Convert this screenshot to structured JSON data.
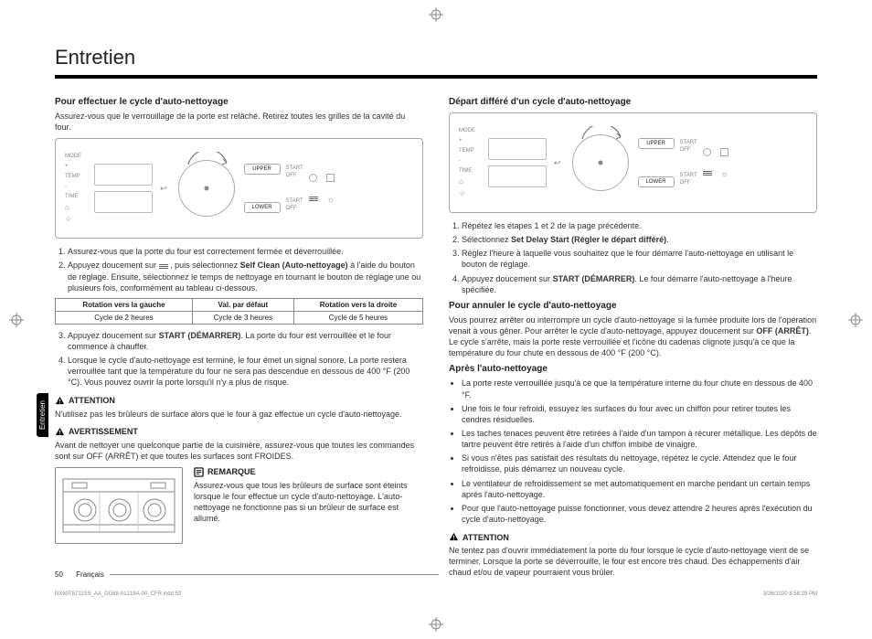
{
  "title": "Entretien",
  "left": {
    "h1": "Pour effectuer le cycle d'auto-nettoyage",
    "p1": "Assurez-vous que le verrouillage de la porte est relâché. Retirez toutes les grilles de la cavité du four.",
    "panel": {
      "ctrls": [
        "MODE",
        "+",
        "TEMP",
        "-",
        "TIME",
        "",
        ""
      ],
      "btn_upper": "UPPER",
      "btn_lower": "LOWER",
      "start": "START",
      "off": "OFF"
    },
    "steps": [
      "Assurez-vous que la porte du four est correctement fermée et déverrouillée.",
      "Appuyez doucement sur ___ , puis sélectionnez __SELFCLEAN__ à l'aide du bouton de réglage. Ensuite, sélectionnez le temps de nettoyage en tournant le bouton de réglage une ou plusieurs fois, conformément au tableau ci-dessous."
    ],
    "selfclean_label": "Self Clean (Auto-nettoyage)",
    "table": {
      "headers": [
        "Rotation vers la gauche",
        "Val. par défaut",
        "Rotation vers la droite"
      ],
      "row": [
        "Cycle de 2 heures",
        "Cycle de 3 heures",
        "Cycle de 5 heures"
      ]
    },
    "steps2": [
      "Appuyez doucement sur __START__. La porte du four est verrouillée et le four commence à chauffer.",
      "Lorsque le cycle d'auto-nettoyage est terminé, le four émet un signal sonore. La porte restera verrouillée tant que la température du four ne sera pas descendue en dessous de 400 °F (200 °C). Vous pouvez ouvrir la porte lorsqu'il n'y a plus de risque."
    ],
    "start_label": "START (DÉMARRER)",
    "attention": "ATTENTION",
    "att_p": "N'utilisez pas les brûleurs de surface alors que le four à gaz effectue un cycle d'auto-nettoyage.",
    "avert": "AVERTISSEMENT",
    "avert_p": "Avant de nettoyer une quelconque partie de la cuisinière, assurez-vous que toutes les commandes sont sur OFF (ARRÊT) et que toutes les surfaces sont FROIDES.",
    "remarque": "REMARQUE",
    "rem_p": "Assurez-vous que tous les brûleurs de surface sont éteints lorsque le four effectue un cycle d'auto-nettoyage. L'auto-nettoyage ne fonctionne pas si un brûleur de surface est allumé."
  },
  "right": {
    "h1": "Départ différé d'un cycle d'auto-nettoyage",
    "steps": [
      "Répétez les étapes 1 et 2 de la page précédente.",
      "Sélectionnez __DELAY__.",
      "Réglez l'heure à laquelle vous souhaitez que le four démarre l'auto-nettoyage en utilisant le bouton de réglage.",
      "Appuyez doucement sur __START2__. Le four démarre l'auto-nettoyage à l'heure spécifiée."
    ],
    "delay_label": "Set Delay Start (Régler le départ différé)",
    "start_label": "START (DÉMARRER)",
    "h2": "Pour annuler le cycle d'auto-nettoyage",
    "p2": "Vous pourrez arrêter ou interrompre un cycle d'auto-nettoyage si la fumée produite lors de l'opération venait à vous gêner. Pour arrêter le cycle d'auto-nettoyage, appuyez doucement sur __OFF__. Le cycle s'arrête, mais la porte reste verrouillée et l'icône du cadenas clignote jusqu'à ce que la température du four chute en dessous de 400 °F (200 °C).",
    "off_label": "OFF (ARRÊT)",
    "h3": "Après l'auto-nettoyage",
    "bullets": [
      "La porte reste verrouillée jusqu'à ce que la température interne du four chute en dessous de 400 °F.",
      "Une fois le four refroidi, essuyez les surfaces du four avec un chiffon pour retirer toutes les cendres résiduelles.",
      "Les taches tenaces peuvent être retirées à l'aide d'un tampon à récurer métallique. Les dépôts de tartre peuvent être retirés à l'aide d'un chiffon imbibé de vinaigre.",
      "Si vous n'êtes pas satisfait des résultats du nettoyage, répétez le cycle. Attendez que le four refroidisse, puis démarrez un nouveau cycle.",
      "Le ventilateur de refroidissement se met automatiquement en marche pendant un certain temps après l'auto-nettoyage.",
      "Pour que l'auto-nettoyage puisse fonctionner, vous devez attendre 2 heures après l'exécution du cycle d'auto-nettoyage."
    ],
    "attention": "ATTENTION",
    "att_p": "Ne tentez pas d'ouvrir immédiatement la porte du four lorsque le cycle d'auto-nettoyage vient de se terminer. Lorsque la porte se déverrouille, le four est encore très chaud. Des échappements d'air chaud et/ou de vapeur pourraient vous brûler."
  },
  "footer": {
    "page": "50",
    "lang": "Français"
  },
  "footrow": {
    "file": "NX60T8711SS_AA_DG68-01219A-00_CFR.indd   50",
    "date": "3/26/2020   8:58:29 PM"
  },
  "sidetab": "Entretien"
}
